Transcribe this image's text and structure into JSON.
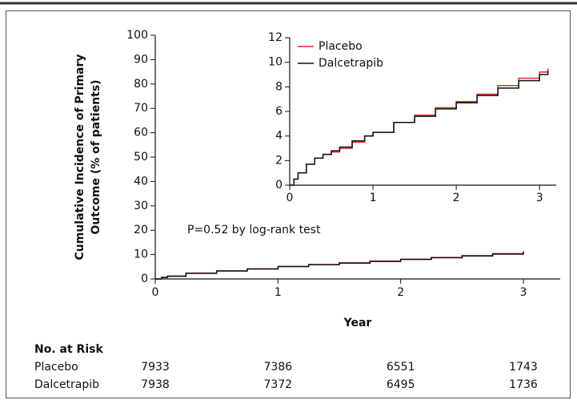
{
  "chart_data": [
    {
      "type": "line",
      "step": true,
      "ylabel": [
        "Cumulative Incidence of Primary",
        "Outcome (% of patients)"
      ],
      "xlabel": "Year",
      "annotation": "P=0.52 by log-rank test",
      "x": [
        0,
        0.05,
        0.1,
        0.25,
        0.5,
        0.75,
        1,
        1.25,
        1.5,
        1.75,
        2,
        2.25,
        2.5,
        2.75,
        3
      ],
      "series": [
        {
          "name": "Placebo",
          "color": "#e8262b",
          "values": [
            0,
            0.6,
            1.2,
            2.4,
            3.3,
            4.1,
            5.1,
            5.9,
            6.6,
            7.3,
            8.1,
            8.8,
            9.6,
            10.4,
            11.3
          ]
        },
        {
          "name": "Dalcetrapib",
          "color": "#111111",
          "values": [
            0,
            0.6,
            1.1,
            2.3,
            3.3,
            4.1,
            5.1,
            5.9,
            6.5,
            7.2,
            8.0,
            8.7,
            9.4,
            10.2,
            11.1
          ]
        }
      ],
      "xlim": [
        0,
        3.3
      ],
      "xticks": [
        0,
        1,
        2,
        3
      ],
      "ylim": [
        0,
        100
      ],
      "yticks": [
        0,
        10,
        20,
        30,
        40,
        50,
        60,
        70,
        80,
        90,
        100
      ]
    },
    {
      "type": "line",
      "step": true,
      "x": [
        0,
        0.05,
        0.1,
        0.2,
        0.3,
        0.4,
        0.5,
        0.6,
        0.75,
        0.9,
        1,
        1.25,
        1.5,
        1.75,
        2,
        2.25,
        2.5,
        2.75,
        3,
        3.1
      ],
      "series": [
        {
          "name": "Placebo",
          "color": "#e8262b",
          "values": [
            0,
            0.5,
            1.0,
            1.7,
            2.2,
            2.5,
            2.7,
            3.0,
            3.5,
            4.0,
            4.3,
            5.1,
            5.7,
            6.3,
            6.8,
            7.4,
            8.1,
            8.7,
            9.2,
            9.5
          ]
        },
        {
          "name": "Dalcetrapib",
          "color": "#111111",
          "values": [
            0,
            0.5,
            1.0,
            1.7,
            2.2,
            2.5,
            2.8,
            3.1,
            3.6,
            4.0,
            4.3,
            5.1,
            5.6,
            6.2,
            6.7,
            7.3,
            7.9,
            8.5,
            9.0,
            9.3
          ]
        }
      ],
      "xlim": [
        0,
        3.2
      ],
      "xticks": [
        0,
        1,
        2,
        3
      ],
      "ylim": [
        0,
        12
      ],
      "yticks": [
        0,
        2,
        4,
        6,
        8,
        10,
        12
      ]
    }
  ],
  "risk_table": {
    "title": "No. at Risk",
    "rows": [
      [
        "Placebo",
        "7933",
        "7386",
        "6551",
        "1743"
      ],
      [
        "Dalcetrapib",
        "7938",
        "7372",
        "6495",
        "1736"
      ]
    ]
  }
}
